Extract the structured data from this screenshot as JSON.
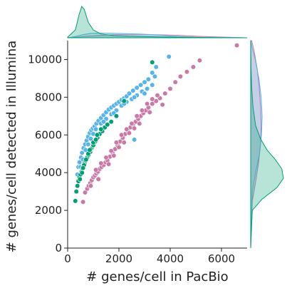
{
  "chart_data": {
    "type": "scatter",
    "title": "",
    "xlabel": "# genes/cell in PacBio",
    "ylabel": "# genes/cell detected in Illumina",
    "xlim": [
      0,
      7000
    ],
    "ylim": [
      0,
      11000
    ],
    "xticks": [
      0,
      2000,
      4000,
      6000
    ],
    "yticks": [
      0,
      2000,
      4000,
      6000,
      8000,
      10000
    ],
    "grid": false,
    "legend": "none",
    "marginals": [
      "top",
      "right"
    ],
    "series": [
      {
        "color": "#c979a6",
        "points": [
          [
            600,
            2450
          ],
          [
            680,
            2950
          ],
          [
            760,
            3150
          ],
          [
            820,
            3300
          ],
          [
            880,
            3450
          ],
          [
            940,
            3600
          ],
          [
            1000,
            3750
          ],
          [
            1060,
            3850
          ],
          [
            1120,
            3950
          ],
          [
            1180,
            4050
          ],
          [
            1250,
            4200
          ],
          [
            1320,
            4300
          ],
          [
            1400,
            4400
          ],
          [
            1480,
            4550
          ],
          [
            1550,
            4650
          ],
          [
            1650,
            4850
          ],
          [
            1750,
            5050
          ],
          [
            1850,
            5250
          ],
          [
            1950,
            5450
          ],
          [
            2050,
            5650
          ],
          [
            2150,
            5850
          ],
          [
            2250,
            6050
          ],
          [
            2350,
            6200
          ],
          [
            2450,
            6400
          ],
          [
            2550,
            6550
          ],
          [
            2650,
            6700
          ],
          [
            2750,
            6850
          ],
          [
            2850,
            7000
          ],
          [
            2950,
            7150
          ],
          [
            3050,
            7300
          ],
          [
            3150,
            7450
          ],
          [
            3300,
            7650
          ],
          [
            3450,
            7800
          ],
          [
            3600,
            7950
          ],
          [
            3800,
            8200
          ],
          [
            4000,
            8450
          ],
          [
            4200,
            8800
          ],
          [
            4400,
            9100
          ],
          [
            4650,
            9350
          ],
          [
            4900,
            9600
          ],
          [
            5150,
            9950
          ],
          [
            6600,
            10750
          ],
          [
            900,
            3300
          ],
          [
            1100,
            4150
          ],
          [
            1300,
            4500
          ],
          [
            1500,
            4800
          ],
          [
            1700,
            5150
          ],
          [
            1900,
            5600
          ],
          [
            2100,
            6000
          ],
          [
            2300,
            6300
          ],
          [
            2500,
            6600
          ],
          [
            2700,
            7000
          ],
          [
            2900,
            7300
          ],
          [
            3100,
            7650
          ],
          [
            3300,
            7900
          ],
          [
            3500,
            8100
          ],
          [
            1600,
            4450
          ],
          [
            2000,
            5350
          ],
          [
            2400,
            6100
          ],
          [
            2800,
            6600
          ],
          [
            3200,
            7200
          ],
          [
            3700,
            7600
          ],
          [
            1200,
            3650
          ],
          [
            1800,
            4900
          ],
          [
            2200,
            5600
          ],
          [
            2600,
            6350
          ]
        ]
      },
      {
        "color": "#56b4e9",
        "points": [
          [
            380,
            3900
          ],
          [
            420,
            4300
          ],
          [
            460,
            4550
          ],
          [
            520,
            4800
          ],
          [
            560,
            5050
          ],
          [
            620,
            5300
          ],
          [
            680,
            5500
          ],
          [
            740,
            5700
          ],
          [
            800,
            5900
          ],
          [
            860,
            6100
          ],
          [
            920,
            6250
          ],
          [
            980,
            6350
          ],
          [
            1050,
            6450
          ],
          [
            1120,
            6600
          ],
          [
            1200,
            6750
          ],
          [
            1300,
            6900
          ],
          [
            1400,
            7050
          ],
          [
            1500,
            7200
          ],
          [
            1600,
            7350
          ],
          [
            1700,
            7450
          ],
          [
            1800,
            7550
          ],
          [
            1900,
            7650
          ],
          [
            2000,
            7750
          ],
          [
            2100,
            7850
          ],
          [
            2200,
            7950
          ],
          [
            2300,
            8050
          ],
          [
            2400,
            8200
          ],
          [
            2550,
            8350
          ],
          [
            2700,
            8500
          ],
          [
            2850,
            8650
          ],
          [
            3000,
            8800
          ],
          [
            3150,
            8950
          ],
          [
            3300,
            9300
          ],
          [
            3450,
            9600
          ],
          [
            3950,
            10150
          ],
          [
            2600,
            5750
          ],
          [
            500,
            4300
          ],
          [
            700,
            5200
          ],
          [
            900,
            5800
          ],
          [
            1100,
            6300
          ],
          [
            1300,
            6600
          ],
          [
            1500,
            6850
          ],
          [
            1700,
            7100
          ],
          [
            1900,
            7300
          ],
          [
            2100,
            7550
          ],
          [
            2300,
            7750
          ],
          [
            2500,
            7900
          ],
          [
            2700,
            8100
          ],
          [
            2900,
            8300
          ],
          [
            3100,
            8450
          ],
          [
            3300,
            8650
          ],
          [
            600,
            4700
          ],
          [
            800,
            5500
          ],
          [
            1000,
            6050
          ],
          [
            1400,
            6700
          ],
          [
            1800,
            7150
          ],
          [
            2200,
            7650
          ],
          [
            2600,
            8000
          ],
          [
            3000,
            8200
          ],
          [
            3400,
            9100
          ]
        ]
      },
      {
        "color": "#009e73",
        "points": [
          [
            300,
            2500
          ],
          [
            340,
            3000
          ],
          [
            380,
            3300
          ],
          [
            420,
            3550
          ],
          [
            460,
            3750
          ],
          [
            500,
            3900
          ],
          [
            540,
            4050
          ],
          [
            580,
            4200
          ],
          [
            620,
            4350
          ],
          [
            660,
            4500
          ],
          [
            700,
            4650
          ],
          [
            760,
            4800
          ],
          [
            820,
            4950
          ],
          [
            880,
            5100
          ],
          [
            940,
            5300
          ],
          [
            1000,
            5450
          ],
          [
            1080,
            5650
          ],
          [
            1160,
            5850
          ],
          [
            1250,
            6050
          ],
          [
            1350,
            6200
          ],
          [
            1450,
            6400
          ],
          [
            1550,
            6550
          ],
          [
            1700,
            6700
          ],
          [
            1900,
            7000
          ],
          [
            2200,
            7800
          ],
          [
            3300,
            9850
          ],
          [
            480,
            3650
          ],
          [
            560,
            4000
          ],
          [
            640,
            4400
          ],
          [
            720,
            4700
          ],
          [
            800,
            5000
          ],
          [
            900,
            5250
          ],
          [
            1000,
            5600
          ],
          [
            1150,
            6000
          ],
          [
            1300,
            6300
          ],
          [
            600,
            4250
          ],
          [
            860,
            5200
          ],
          [
            1100,
            5750
          ]
        ]
      }
    ],
    "marginal_density": {
      "top": [
        {
          "color": "#009e73",
          "x": [
            0,
            300,
            450,
            550,
            650,
            800,
            1000,
            1300,
            1800,
            2500,
            3500,
            4500,
            5500,
            6500,
            7000
          ],
          "density": [
            0.02,
            0.25,
            0.75,
            1.0,
            0.9,
            0.5,
            0.25,
            0.12,
            0.07,
            0.05,
            0.03,
            0.015,
            0.005,
            0.0,
            0.0
          ]
        },
        {
          "color": "#56b4e9",
          "x": [
            0,
            300,
            600,
            900,
            1300,
            1800,
            2300,
            2800,
            3300,
            3800,
            4300,
            5000,
            6000,
            7000
          ],
          "density": [
            0.0,
            0.04,
            0.1,
            0.14,
            0.15,
            0.14,
            0.13,
            0.12,
            0.1,
            0.07,
            0.04,
            0.02,
            0.005,
            0.0
          ]
        },
        {
          "color": "#c979a6",
          "x": [
            0,
            400,
            800,
            1300,
            1800,
            2300,
            2800,
            3300,
            3800,
            4300,
            4800,
            5300,
            5800,
            6300,
            7000
          ],
          "density": [
            0.0,
            0.02,
            0.05,
            0.08,
            0.1,
            0.11,
            0.11,
            0.1,
            0.09,
            0.08,
            0.06,
            0.04,
            0.03,
            0.015,
            0.0
          ]
        }
      ],
      "right": [
        {
          "color": "#009e73",
          "y": [
            0,
            2000,
            2600,
            3200,
            3700,
            4200,
            4700,
            5200,
            5800,
            6500,
            7500,
            8500,
            9500,
            11000
          ],
          "density": [
            0.0,
            0.05,
            0.35,
            0.8,
            1.0,
            0.95,
            0.75,
            0.5,
            0.3,
            0.15,
            0.07,
            0.03,
            0.01,
            0.0
          ]
        },
        {
          "color": "#56b4e9",
          "y": [
            0,
            3000,
            4000,
            5000,
            6000,
            7000,
            8000,
            9000,
            10000,
            10500,
            11000
          ],
          "density": [
            0.0,
            0.05,
            0.15,
            0.27,
            0.33,
            0.35,
            0.32,
            0.25,
            0.14,
            0.06,
            0.0
          ]
        },
        {
          "color": "#c979a6",
          "y": [
            0,
            2500,
            3500,
            4500,
            5500,
            6500,
            7500,
            8500,
            9500,
            10500,
            11000
          ],
          "density": [
            0.0,
            0.05,
            0.15,
            0.24,
            0.3,
            0.32,
            0.3,
            0.26,
            0.2,
            0.1,
            0.03
          ]
        }
      ]
    }
  }
}
